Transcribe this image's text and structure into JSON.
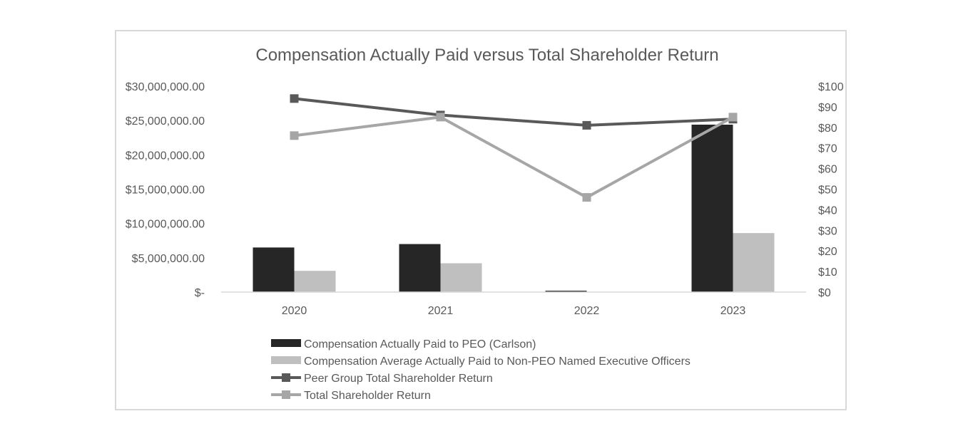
{
  "chart_data": {
    "type": "bar",
    "title": "Compensation Actually Paid versus Total Shareholder Return",
    "categories": [
      "2020",
      "2021",
      "2022",
      "2023"
    ],
    "y_left": {
      "min": 0,
      "max": 30000000,
      "step": 5000000,
      "tick_labels": [
        "$-",
        "$5,000,000.00",
        "$10,000,000.00",
        "$15,000,000.00",
        "$20,000,000.00",
        "$25,000,000.00",
        "$30,000,000.00"
      ]
    },
    "y_right": {
      "min": 0,
      "max": 100,
      "step": 10,
      "tick_labels": [
        "$0",
        "$10",
        "$20",
        "$30",
        "$40",
        "$50",
        "$60",
        "$70",
        "$80",
        "$90",
        "$100"
      ]
    },
    "series": [
      {
        "name": "Compensation Actually Paid to PEO (Carlson)",
        "kind": "bar",
        "axis": "left",
        "color": "#262626",
        "values": [
          6500000,
          7000000,
          200000,
          24400000
        ]
      },
      {
        "name": "Compensation Average Actually Paid to Non-PEO Named Executive Officers",
        "kind": "bar",
        "axis": "left",
        "color": "#bfbfbf",
        "values": [
          3100000,
          4200000,
          0,
          8600000
        ]
      },
      {
        "name": "Peer Group Total Shareholder Return",
        "kind": "line",
        "axis": "right",
        "color": "#595959",
        "values": [
          94,
          86,
          81,
          84
        ]
      },
      {
        "name": "Total Shareholder Return",
        "kind": "line",
        "axis": "right",
        "color": "#a6a6a6",
        "values": [
          76,
          85,
          46,
          85
        ]
      }
    ],
    "legend_position": "bottom",
    "grid": false
  }
}
